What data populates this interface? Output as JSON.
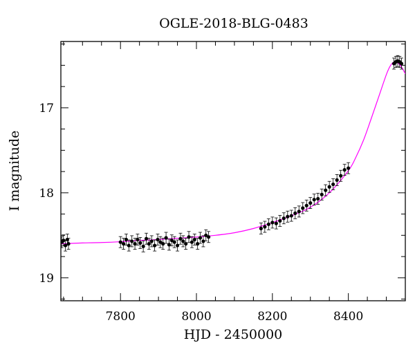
{
  "chart_data": {
    "type": "scatter",
    "title": "OGLE-2018-BLG-0483",
    "xlabel": "HJD - 2450000",
    "ylabel": "I magnitude",
    "xlim": [
      7643,
      8550
    ],
    "ylim": [
      19.27,
      16.22
    ],
    "y_inverted": true,
    "grid": false,
    "x_ticks": [
      7800,
      8000,
      8200,
      8400
    ],
    "y_ticks": [
      17,
      18,
      19
    ],
    "x_minor_step": 50,
    "y_minor_step": 0.25,
    "colors": {
      "points": "#000000",
      "model": "#ff00ff",
      "axes": "#000000"
    },
    "series": [
      {
        "kind": "points",
        "with_error_bars": true,
        "x": [
          7645,
          7650,
          7655,
          7660,
          7663,
          7800,
          7808,
          7815,
          7822,
          7830,
          7838,
          7845,
          7852,
          7860,
          7868,
          7875,
          7882,
          7890,
          7898,
          7905,
          7912,
          7920,
          7928,
          7935,
          7942,
          7950,
          7958,
          7965,
          7972,
          7980,
          7988,
          7995,
          8003,
          8010,
          8018,
          8025,
          8032,
          8170,
          8180,
          8190,
          8200,
          8210,
          8220,
          8230,
          8240,
          8250,
          8260,
          8270,
          8280,
          8290,
          8300,
          8310,
          8320,
          8330,
          8340,
          8350,
          8360,
          8370,
          8380,
          8390,
          8400,
          8520,
          8525,
          8530,
          8535,
          8540
        ],
        "y": [
          18.58,
          18.56,
          18.62,
          18.55,
          18.6,
          18.58,
          18.6,
          18.55,
          18.62,
          18.57,
          18.6,
          18.55,
          18.59,
          18.63,
          18.54,
          18.6,
          18.57,
          18.62,
          18.55,
          18.58,
          18.6,
          18.53,
          18.61,
          18.56,
          18.58,
          18.62,
          18.54,
          18.57,
          18.6,
          18.52,
          18.58,
          18.55,
          18.6,
          18.53,
          18.57,
          18.5,
          18.52,
          18.42,
          18.4,
          18.37,
          18.35,
          18.36,
          18.33,
          18.3,
          18.28,
          18.27,
          18.24,
          18.22,
          18.18,
          18.15,
          18.12,
          18.08,
          18.07,
          18.02,
          17.97,
          17.93,
          17.9,
          17.85,
          17.8,
          17.73,
          17.71,
          16.48,
          16.46,
          16.45,
          16.46,
          16.48
        ]
      },
      {
        "kind": "model",
        "x": [
          7643,
          7700,
          7750,
          7800,
          7850,
          7900,
          7950,
          8000,
          8050,
          8100,
          8150,
          8200,
          8250,
          8300,
          8350,
          8400,
          8420,
          8440,
          8460,
          8480,
          8500,
          8510,
          8520,
          8530,
          8540,
          8550
        ],
        "y": [
          18.6,
          18.59,
          18.585,
          18.575,
          18.56,
          18.55,
          18.535,
          18.52,
          18.5,
          18.47,
          18.42,
          18.35,
          18.27,
          18.17,
          18.0,
          17.74,
          17.58,
          17.38,
          17.13,
          16.87,
          16.61,
          16.51,
          16.46,
          16.47,
          16.52,
          16.6
        ]
      }
    ]
  }
}
